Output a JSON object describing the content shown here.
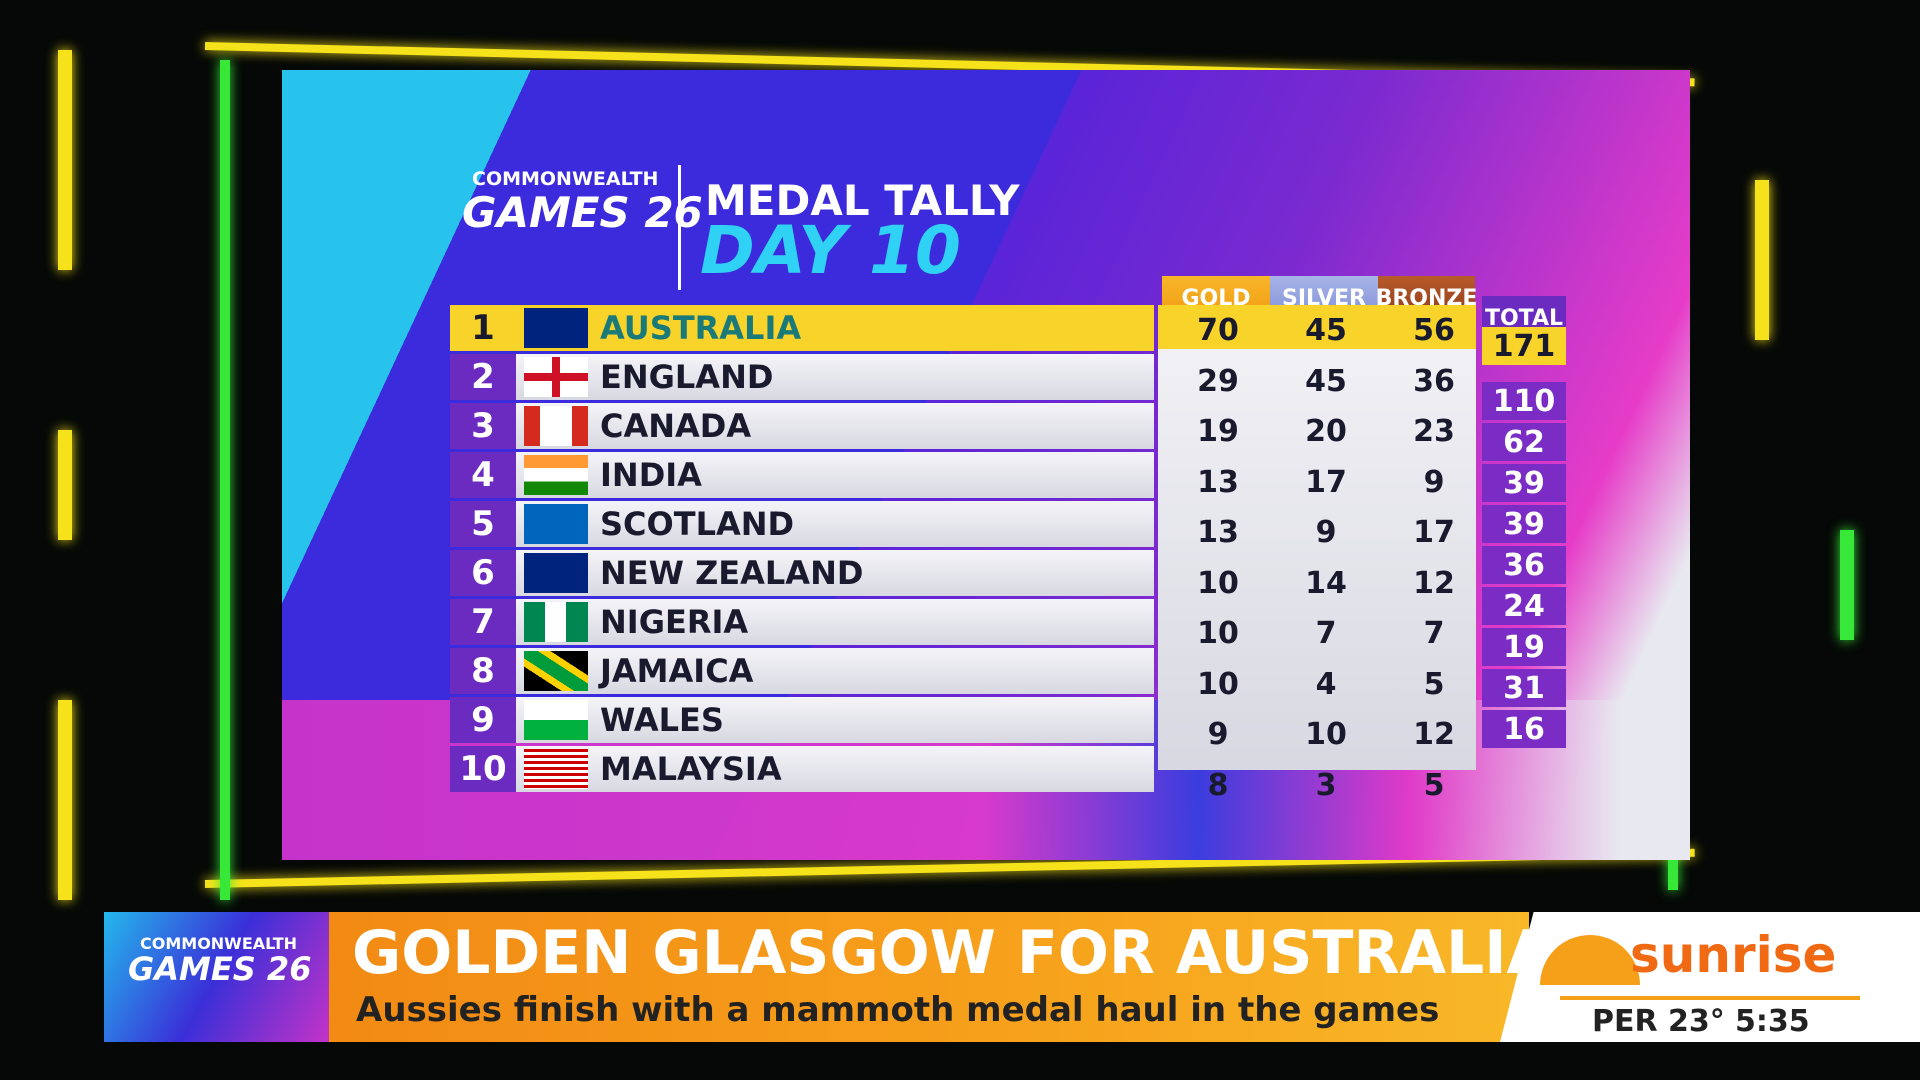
{
  "logo": {
    "line1": "COMMONWEALTH",
    "line2": "GAMES 26"
  },
  "header": {
    "title": "MEDAL TALLY",
    "subtitle": "DAY 10"
  },
  "table": {
    "columns": [
      "GOLD",
      "SILVER",
      "BRONZE",
      "TOTAL"
    ],
    "rows": [
      [
        1,
        "AUSTRALIA",
        70,
        45,
        56,
        171
      ],
      [
        2,
        "ENGLAND",
        29,
        45,
        36,
        110
      ],
      [
        3,
        "CANADA",
        19,
        20,
        23,
        62
      ],
      [
        4,
        "INDIA",
        13,
        17,
        9,
        39
      ],
      [
        5,
        "SCOTLAND",
        13,
        9,
        17,
        39
      ],
      [
        6,
        "NEW ZEALAND",
        10,
        14,
        12,
        36
      ],
      [
        7,
        "NIGERIA",
        10,
        7,
        7,
        24
      ],
      [
        8,
        "JAMAICA",
        10,
        4,
        5,
        19
      ],
      [
        9,
        "WALES",
        9,
        10,
        12,
        31
      ],
      [
        10,
        "MALAYSIA",
        8,
        3,
        5,
        16
      ]
    ]
  },
  "lower_third": {
    "logo_line1": "COMMONWEALTH",
    "logo_line2": "GAMES 26",
    "headline": "GOLDEN GLASGOW FOR AUSTRALIA",
    "subheadline": "Aussies finish with a mammoth medal haul in the games",
    "brand": "sunrise",
    "weather": "PER 23°",
    "time": "5:35"
  }
}
